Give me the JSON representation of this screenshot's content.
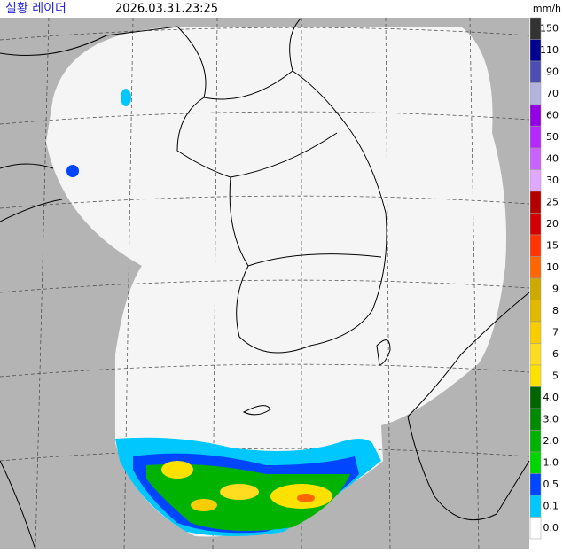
{
  "header": {
    "title": "실황 레이더",
    "timestamp": "2026.03.31.23:25"
  },
  "legend": {
    "unit": "mm/h",
    "items": [
      {
        "label": "150",
        "color": "#333333"
      },
      {
        "label": "110",
        "color": "#000390"
      },
      {
        "label": "90",
        "color": "#4c4eb1"
      },
      {
        "label": "70",
        "color": "#b3b4de"
      },
      {
        "label": "60",
        "color": "#9300e4"
      },
      {
        "label": "50",
        "color": "#b329ff"
      },
      {
        "label": "40",
        "color": "#c963ff"
      },
      {
        "label": "30",
        "color": "#e0a9ff"
      },
      {
        "label": "25",
        "color": "#b40000"
      },
      {
        "label": "20",
        "color": "#d20000"
      },
      {
        "label": "15",
        "color": "#ff3300"
      },
      {
        "label": "10",
        "color": "#ff6600"
      },
      {
        "label": "9",
        "color": "#ccaa00"
      },
      {
        "label": "8",
        "color": "#e0b900"
      },
      {
        "label": "7",
        "color": "#f9cd00"
      },
      {
        "label": "6",
        "color": "#ffdc1f"
      },
      {
        "label": "5",
        "color": "#ffe100"
      },
      {
        "label": "4.0",
        "color": "#006700"
      },
      {
        "label": "3.0",
        "color": "#008a00"
      },
      {
        "label": "2.0",
        "color": "#00b300"
      },
      {
        "label": "1.0",
        "color": "#00d500"
      },
      {
        "label": "0.5",
        "color": "#0045ff"
      },
      {
        "label": "0.1",
        "color": "#00c8ff"
      },
      {
        "label": "0.0",
        "color": "#ffffff"
      }
    ]
  }
}
